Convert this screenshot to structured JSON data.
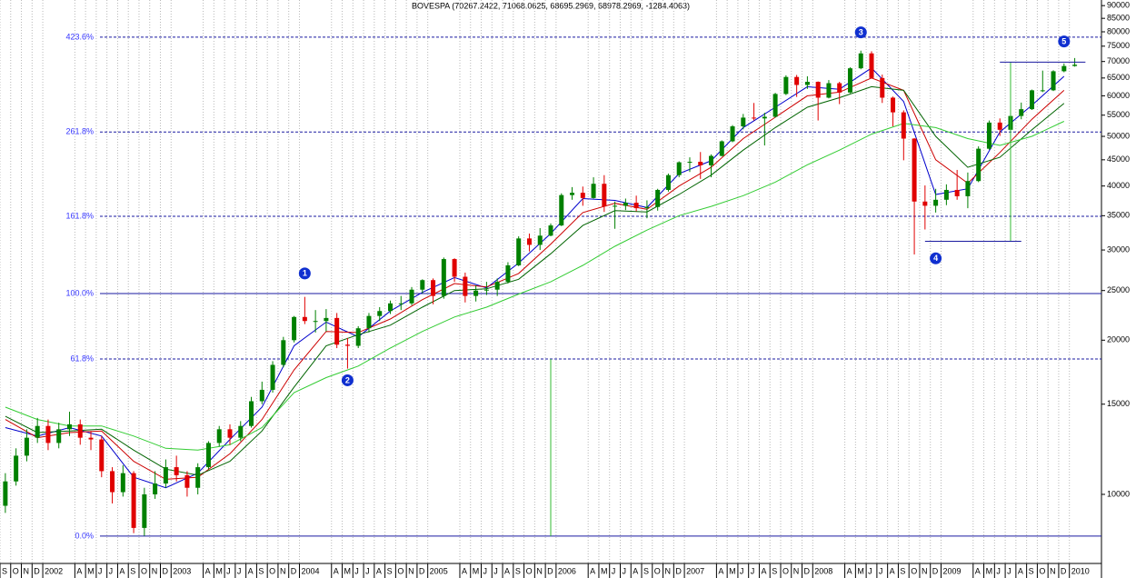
{
  "chart_data": {
    "type": "candlestick",
    "title": "BOVESPA (70267.2422, 71068.0625, 68695.2969, 68978.2969, -1284.4063)",
    "scale": "log",
    "grid": true,
    "up_color": "#008000",
    "down_color": "#e00000",
    "xlim": [
      "2001-09",
      "2010-03"
    ],
    "ylim": [
      7330,
      92300
    ],
    "yticks": [
      90000,
      85000,
      80000,
      75000,
      70000,
      65000,
      60000,
      55000,
      50000,
      45000,
      40000,
      35000,
      30000,
      25000,
      20000,
      15000,
      10000
    ],
    "xticks": [
      {
        "value": "2001-09",
        "label": "S"
      },
      {
        "value": "2001-10",
        "label": "O"
      },
      {
        "value": "2001-11",
        "label": "N"
      },
      {
        "value": "2001-12",
        "label": "D"
      },
      {
        "value": "2002-01",
        "label": "2002"
      },
      {
        "value": "2002-04",
        "label": "A"
      },
      {
        "value": "2002-05",
        "label": "M"
      },
      {
        "value": "2002-06",
        "label": "J"
      },
      {
        "value": "2002-07",
        "label": "J"
      },
      {
        "value": "2002-08",
        "label": "A"
      },
      {
        "value": "2002-09",
        "label": "S"
      },
      {
        "value": "2002-10",
        "label": "O"
      },
      {
        "value": "2002-11",
        "label": "N"
      },
      {
        "value": "2002-12",
        "label": "D"
      },
      {
        "value": "2003-01",
        "label": "2003"
      },
      {
        "value": "2003-04",
        "label": "A"
      },
      {
        "value": "2003-05",
        "label": "M"
      },
      {
        "value": "2003-06",
        "label": "J"
      },
      {
        "value": "2003-07",
        "label": "J"
      },
      {
        "value": "2003-08",
        "label": "A"
      },
      {
        "value": "2003-09",
        "label": "S"
      },
      {
        "value": "2003-10",
        "label": "O"
      },
      {
        "value": "2003-11",
        "label": "N"
      },
      {
        "value": "2003-12",
        "label": "D"
      },
      {
        "value": "2004-01",
        "label": "2004"
      },
      {
        "value": "2004-04",
        "label": "A"
      },
      {
        "value": "2004-05",
        "label": "M"
      },
      {
        "value": "2004-06",
        "label": "J"
      },
      {
        "value": "2004-07",
        "label": "J"
      },
      {
        "value": "2004-08",
        "label": "A"
      },
      {
        "value": "2004-09",
        "label": "S"
      },
      {
        "value": "2004-10",
        "label": "O"
      },
      {
        "value": "2004-11",
        "label": "N"
      },
      {
        "value": "2004-12",
        "label": "D"
      },
      {
        "value": "2005-01",
        "label": "2005"
      },
      {
        "value": "2005-04",
        "label": "A"
      },
      {
        "value": "2005-05",
        "label": "M"
      },
      {
        "value": "2005-06",
        "label": "J"
      },
      {
        "value": "2005-07",
        "label": "J"
      },
      {
        "value": "2005-08",
        "label": "A"
      },
      {
        "value": "2005-09",
        "label": "S"
      },
      {
        "value": "2005-10",
        "label": "O"
      },
      {
        "value": "2005-11",
        "label": "N"
      },
      {
        "value": "2005-12",
        "label": "D"
      },
      {
        "value": "2006-01",
        "label": "2006"
      },
      {
        "value": "2006-04",
        "label": "A"
      },
      {
        "value": "2006-05",
        "label": "M"
      },
      {
        "value": "2006-06",
        "label": "J"
      },
      {
        "value": "2006-07",
        "label": "J"
      },
      {
        "value": "2006-08",
        "label": "A"
      },
      {
        "value": "2006-09",
        "label": "S"
      },
      {
        "value": "2006-10",
        "label": "O"
      },
      {
        "value": "2006-11",
        "label": "N"
      },
      {
        "value": "2006-12",
        "label": "D"
      },
      {
        "value": "2007-01",
        "label": "2007"
      },
      {
        "value": "2007-04",
        "label": "A"
      },
      {
        "value": "2007-05",
        "label": "M"
      },
      {
        "value": "2007-06",
        "label": "J"
      },
      {
        "value": "2007-07",
        "label": "J"
      },
      {
        "value": "2007-08",
        "label": "A"
      },
      {
        "value": "2007-09",
        "label": "S"
      },
      {
        "value": "2007-10",
        "label": "O"
      },
      {
        "value": "2007-11",
        "label": "N"
      },
      {
        "value": "2007-12",
        "label": "D"
      },
      {
        "value": "2008-01",
        "label": "2008"
      },
      {
        "value": "2008-04",
        "label": "A"
      },
      {
        "value": "2008-05",
        "label": "M"
      },
      {
        "value": "2008-06",
        "label": "J"
      },
      {
        "value": "2008-07",
        "label": "J"
      },
      {
        "value": "2008-08",
        "label": "A"
      },
      {
        "value": "2008-09",
        "label": "S"
      },
      {
        "value": "2008-10",
        "label": "O"
      },
      {
        "value": "2008-11",
        "label": "N"
      },
      {
        "value": "2008-12",
        "label": "D"
      },
      {
        "value": "2009-01",
        "label": "2009"
      },
      {
        "value": "2009-04",
        "label": "A"
      },
      {
        "value": "2009-05",
        "label": "M"
      },
      {
        "value": "2009-06",
        "label": "J"
      },
      {
        "value": "2009-07",
        "label": "J"
      },
      {
        "value": "2009-08",
        "label": "A"
      },
      {
        "value": "2009-09",
        "label": "S"
      },
      {
        "value": "2009-10",
        "label": "O"
      },
      {
        "value": "2009-11",
        "label": "N"
      },
      {
        "value": "2009-12",
        "label": "D"
      },
      {
        "value": "2010-01",
        "label": "2010"
      }
    ],
    "x": [
      "2001-09",
      "2001-10",
      "2001-11",
      "2001-12",
      "2002-01",
      "2002-02",
      "2002-03",
      "2002-04",
      "2002-05",
      "2002-06",
      "2002-07",
      "2002-08",
      "2002-09",
      "2002-10",
      "2002-11",
      "2002-12",
      "2003-01",
      "2003-02",
      "2003-03",
      "2003-04",
      "2003-05",
      "2003-06",
      "2003-07",
      "2003-08",
      "2003-09",
      "2003-10",
      "2003-11",
      "2003-12",
      "2004-01",
      "2004-02",
      "2004-03",
      "2004-04",
      "2004-05",
      "2004-06",
      "2004-07",
      "2004-08",
      "2004-09",
      "2004-10",
      "2004-11",
      "2004-12",
      "2005-01",
      "2005-02",
      "2005-03",
      "2005-04",
      "2005-05",
      "2005-06",
      "2005-07",
      "2005-08",
      "2005-09",
      "2005-10",
      "2005-11",
      "2005-12",
      "2006-01",
      "2006-02",
      "2006-03",
      "2006-04",
      "2006-05",
      "2006-06",
      "2006-07",
      "2006-08",
      "2006-09",
      "2006-10",
      "2006-11",
      "2006-12",
      "2007-01",
      "2007-02",
      "2007-03",
      "2007-04",
      "2007-05",
      "2007-06",
      "2007-07",
      "2007-08",
      "2007-09",
      "2007-10",
      "2007-11",
      "2007-12",
      "2008-01",
      "2008-02",
      "2008-03",
      "2008-04",
      "2008-05",
      "2008-06",
      "2008-07",
      "2008-08",
      "2008-09",
      "2008-10",
      "2008-11",
      "2008-12",
      "2009-01",
      "2009-02",
      "2009-03",
      "2009-04",
      "2009-05",
      "2009-06",
      "2009-07",
      "2009-08",
      "2009-09",
      "2009-10",
      "2009-11",
      "2009-12",
      "2010-01"
    ],
    "open": [
      9500,
      10600,
      11900,
      12900,
      13600,
      12600,
      13400,
      13700,
      12900,
      12800,
      11100,
      10100,
      11000,
      8600,
      10000,
      10500,
      11300,
      10900,
      10300,
      11300,
      12600,
      13400,
      12900,
      13600,
      15200,
      16000,
      17900,
      20000,
      22200,
      21800,
      21800,
      22100,
      19600,
      19500,
      21100,
      22300,
      22800,
      23600,
      23600,
      25100,
      26200,
      24400,
      28800,
      26600,
      24400,
      25000,
      25100,
      26000,
      28000,
      31600,
      30700,
      32000,
      33500,
      38400,
      38800,
      37900,
      40400,
      36500,
      36600,
      37100,
      36200,
      36400,
      39300,
      42000,
      44500,
      44600,
      43900,
      45800,
      48900,
      52300,
      54400,
      54200,
      54600,
      60500,
      65300,
      63000,
      63900,
      59500,
      63500,
      60900,
      67900,
      72600,
      65000,
      59500,
      55700,
      49500,
      37300,
      36600,
      37600,
      39300,
      38200,
      40900,
      47300,
      53200,
      51500,
      54800,
      56500,
      61500,
      61500,
      67000,
      68600
    ],
    "high": [
      11000,
      12300,
      13400,
      14100,
      14000,
      13800,
      14500,
      14000,
      13300,
      13000,
      11300,
      11400,
      11100,
      10300,
      11100,
      11700,
      11900,
      11100,
      11500,
      12700,
      13600,
      13700,
      13900,
      15500,
      16600,
      18200,
      20300,
      22300,
      24300,
      22900,
      23000,
      22600,
      20200,
      21300,
      22600,
      23200,
      23900,
      24400,
      25400,
      26300,
      26400,
      29000,
      28900,
      27100,
      25600,
      26000,
      26400,
      28400,
      31900,
      32300,
      33100,
      33800,
      38700,
      39800,
      39900,
      41600,
      42000,
      37300,
      37800,
      38300,
      37500,
      39500,
      42300,
      44700,
      45500,
      46600,
      46100,
      49100,
      52600,
      55300,
      58100,
      55600,
      60800,
      65800,
      65900,
      65500,
      64000,
      64400,
      63900,
      68200,
      73500,
      73300,
      66000,
      59800,
      56200,
      49600,
      40100,
      39500,
      40300,
      43000,
      42500,
      47800,
      53700,
      54200,
      55300,
      58200,
      61700,
      67200,
      67300,
      69400,
      71100
    ],
    "low": [
      9200,
      10400,
      11600,
      12600,
      12200,
      12300,
      13000,
      12500,
      12200,
      10800,
      9600,
      9900,
      8400,
      8300,
      9800,
      10300,
      10600,
      9900,
      10000,
      11200,
      12400,
      12500,
      12700,
      13500,
      15000,
      15800,
      17700,
      19800,
      21500,
      20700,
      20800,
      19300,
      17600,
      19300,
      20700,
      21800,
      22500,
      22900,
      23400,
      24700,
      23500,
      24100,
      26000,
      23700,
      23800,
      24500,
      24400,
      25800,
      27900,
      29800,
      30000,
      31900,
      33400,
      37600,
      36600,
      37800,
      35600,
      33000,
      35900,
      35700,
      34600,
      35800,
      39000,
      41600,
      42600,
      41300,
      41600,
      45700,
      48700,
      51600,
      53700,
      48000,
      54400,
      60200,
      59700,
      61900,
      53700,
      59300,
      57800,
      60700,
      67600,
      64800,
      58100,
      52300,
      44900,
      29400,
      32900,
      35500,
      36700,
      37600,
      36200,
      40700,
      47100,
      50100,
      48800,
      54000,
      56300,
      61000,
      61300,
      66700,
      68400
    ],
    "close": [
      10600,
      11900,
      12900,
      13600,
      12600,
      13400,
      13700,
      12900,
      12800,
      11100,
      10100,
      11000,
      8600,
      10000,
      10500,
      11300,
      10900,
      10300,
      11300,
      12600,
      13400,
      12900,
      13600,
      15200,
      16000,
      17900,
      20000,
      22200,
      21800,
      21800,
      22100,
      19600,
      19500,
      21100,
      22300,
      22800,
      23600,
      23600,
      25100,
      26200,
      24400,
      28800,
      26600,
      24400,
      25000,
      25100,
      26000,
      28000,
      31600,
      30700,
      32000,
      33500,
      38400,
      38800,
      37900,
      40400,
      36500,
      36600,
      37100,
      36200,
      36400,
      39300,
      42000,
      44500,
      44600,
      43900,
      45800,
      48900,
      52300,
      54400,
      54200,
      54600,
      60500,
      65300,
      63000,
      63900,
      59500,
      63500,
      60900,
      67900,
      72600,
      65000,
      59500,
      55700,
      49500,
      37300,
      36600,
      37600,
      39300,
      38200,
      40900,
      47300,
      53200,
      51500,
      54800,
      56500,
      61500,
      61500,
      67000,
      68600,
      69000
    ],
    "moving_averages": {
      "x": [
        "2001-09",
        "2001-12",
        "2002-03",
        "2002-06",
        "2002-09",
        "2002-12",
        "2003-03",
        "2003-06",
        "2003-09",
        "2003-12",
        "2004-03",
        "2004-06",
        "2004-09",
        "2004-12",
        "2005-03",
        "2005-06",
        "2005-09",
        "2005-12",
        "2006-03",
        "2006-06",
        "2006-09",
        "2006-12",
        "2007-03",
        "2007-06",
        "2007-09",
        "2007-12",
        "2008-03",
        "2008-06",
        "2008-09",
        "2008-12",
        "2009-03",
        "2009-06",
        "2009-09",
        "2009-12"
      ],
      "lines": [
        {
          "color": "#0000cc",
          "values": [
            13500,
            13000,
            13500,
            13000,
            10800,
            10300,
            11000,
            12800,
            14800,
            19500,
            21700,
            20300,
            22800,
            24800,
            26500,
            25300,
            28300,
            32300,
            37800,
            37500,
            36300,
            42300,
            44800,
            52000,
            57000,
            62500,
            61800,
            68000,
            58500,
            38500,
            39500,
            51000,
            57500,
            65500
          ]
        },
        {
          "color": "#cc0000",
          "values": [
            14000,
            12900,
            13200,
            13300,
            11600,
            10700,
            10800,
            12000,
            14000,
            17500,
            20800,
            20700,
            22000,
            24000,
            25800,
            25400,
            27000,
            30800,
            35500,
            37000,
            36000,
            40000,
            43500,
            49500,
            54500,
            60000,
            61000,
            65000,
            61500,
            45000,
            40500,
            46500,
            54000,
            61500
          ]
        },
        {
          "color": "#006400",
          "values": [
            14200,
            13200,
            13300,
            13400,
            12200,
            11200,
            10900,
            11600,
            13300,
            16200,
            19500,
            20500,
            21400,
            23200,
            25000,
            25200,
            26300,
            29500,
            33500,
            35800,
            35600,
            38500,
            42000,
            47000,
            52000,
            57000,
            59500,
            62500,
            61500,
            50000,
            43500,
            45500,
            51500,
            58000
          ]
        },
        {
          "color": "#33cc33",
          "values": [
            14800,
            14000,
            13600,
            13600,
            13000,
            12300,
            12200,
            12500,
            13500,
            15800,
            16900,
            17800,
            19300,
            20800,
            22200,
            23200,
            24600,
            26000,
            28000,
            30500,
            32800,
            35000,
            36500,
            38300,
            40700,
            44000,
            47000,
            50500,
            53000,
            52000,
            49500,
            48000,
            50000,
            53500
          ]
        }
      ]
    },
    "fib_color": "#1a1aa0",
    "fib_label_color": "#3535ff",
    "fib_levels": [
      {
        "label": "423.6%",
        "value": 78100,
        "style": "dashed"
      },
      {
        "label": "261.8%",
        "value": 51000,
        "style": "dashed"
      },
      {
        "label": "161.8%",
        "value": 34900,
        "style": "dashed"
      },
      {
        "label": "100.0%",
        "value": 24660,
        "style": "solid"
      },
      {
        "label": "61.8%",
        "value": 18380,
        "style": "dashed"
      },
      {
        "label": "0.0%",
        "value": 8290,
        "style": "solid"
      }
    ],
    "wave_color": "#1030d0",
    "waves": [
      {
        "label": "1",
        "x": "2004-01",
        "value": 27000
      },
      {
        "label": "2",
        "x": "2004-05",
        "value": 16700
      },
      {
        "label": "3",
        "x": "2008-05",
        "value": 79800
      },
      {
        "label": "4",
        "x": "2008-12",
        "value": 28900
      },
      {
        "label": "5",
        "x": "2009-12",
        "value": 76600
      }
    ],
    "segments": [
      {
        "color": "#33bb33",
        "x": [
          "2005-12",
          "2005-12"
        ],
        "values": [
          18380,
          8290
        ]
      },
      {
        "color": "#33bb33",
        "x": [
          "2009-07",
          "2009-07"
        ],
        "values": [
          69800,
          31200
        ]
      },
      {
        "color": "#1a1aa0",
        "x": [
          "2009-06",
          "2010-02"
        ],
        "values": [
          69800,
          69800
        ]
      },
      {
        "color": "#1a1aa0",
        "x": [
          "2008-11",
          "2009-08"
        ],
        "values": [
          31200,
          31200
        ]
      }
    ]
  }
}
